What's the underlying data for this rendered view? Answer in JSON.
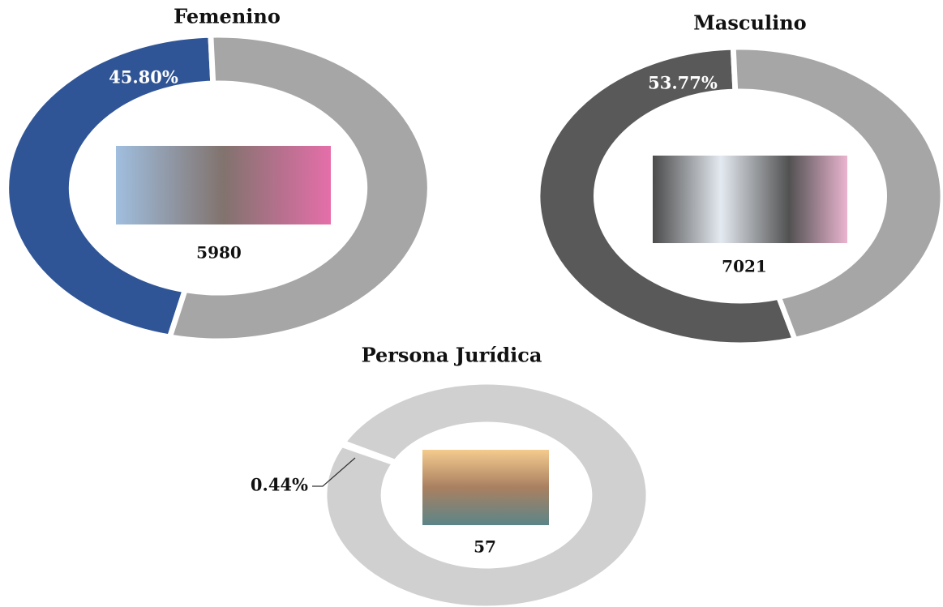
{
  "chart_data": [
    {
      "type": "pie",
      "title": "Femenino",
      "values": [
        45.8,
        54.2
      ],
      "value_labels": [
        "45.80%",
        null
      ],
      "colors": [
        "#2f5597",
        "#a6a6a6"
      ],
      "center_value": 5980
    },
    {
      "type": "pie",
      "title": "Masculino",
      "values": [
        53.77,
        46.23
      ],
      "value_labels": [
        "53.77%",
        null
      ],
      "colors": [
        "#595959",
        "#a6a6a6"
      ],
      "center_value": 7021
    },
    {
      "type": "pie",
      "title": "Persona Jurídica",
      "values": [
        0.44,
        99.56
      ],
      "value_labels": [
        "0.44%",
        null
      ],
      "colors": [
        "#ed7d31",
        "#d0d0d0"
      ],
      "center_value": 57
    }
  ]
}
